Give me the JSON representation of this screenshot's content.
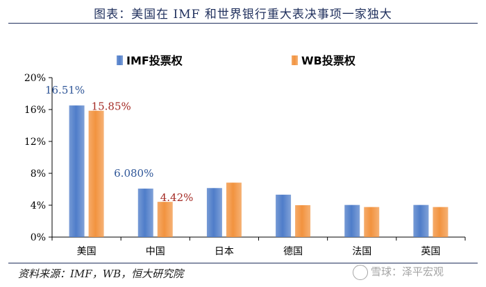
{
  "page": {
    "title": "图表：美国在 IMF 和世界银行重大表决事项一家独大",
    "source": "资料来源：IMF，WB，恒大研究院",
    "watermark": "雪球：泽平宏观"
  },
  "colors": {
    "imf": "#4f7dc9",
    "wb": "#f2933f",
    "imf_label": "#2e5597",
    "wb_label": "#a42a24",
    "title": "#1f2f5c"
  },
  "chart_data": {
    "type": "bar",
    "title": "",
    "xlabel": "",
    "ylabel": "",
    "categories": [
      "美国",
      "中国",
      "日本",
      "德国",
      "法国",
      "英国"
    ],
    "series": [
      {
        "name": "IMF投票权",
        "values": [
          16.51,
          6.08,
          6.15,
          5.32,
          4.03,
          4.03
        ]
      },
      {
        "name": "WB投票权",
        "values": [
          15.85,
          4.42,
          6.83,
          4.0,
          3.77,
          3.77
        ]
      }
    ],
    "data_labels": [
      {
        "series": 0,
        "index": 0,
        "text": "16.51%"
      },
      {
        "series": 1,
        "index": 0,
        "text": "15.85%"
      },
      {
        "series": 0,
        "index": 1,
        "text": "6.080%"
      },
      {
        "series": 1,
        "index": 1,
        "text": "4.42%"
      }
    ],
    "ylim": [
      0,
      20
    ],
    "yticks": [
      0,
      4,
      8,
      12,
      16,
      20
    ],
    "ytick_labels": [
      "0%",
      "4%",
      "8%",
      "12%",
      "16%",
      "20%"
    ],
    "legend_position": "top-center",
    "grid": false
  }
}
